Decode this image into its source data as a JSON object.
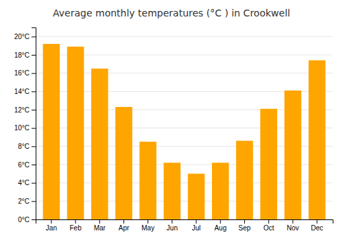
{
  "chart_data": {
    "type": "bar",
    "title": "Average monthly temperatures (°C ) in Crookwell",
    "categories": [
      "Jan",
      "Feb",
      "Mar",
      "Apr",
      "May",
      "Jun",
      "Jul",
      "Aug",
      "Sep",
      "Oct",
      "Nov",
      "Dec"
    ],
    "values": [
      19.2,
      18.9,
      16.5,
      12.3,
      8.5,
      6.2,
      5.0,
      6.2,
      8.6,
      12.1,
      14.1,
      17.4
    ],
    "color": "#FFA500",
    "ylim": [
      0,
      21
    ],
    "yticks": [
      {
        "value": 0,
        "label": "0°C"
      },
      {
        "value": 2,
        "label": "2°C"
      },
      {
        "value": 4,
        "label": "4°C"
      },
      {
        "value": 6,
        "label": "6°C"
      },
      {
        "value": 8,
        "label": "8°C"
      },
      {
        "value": 10,
        "label": "10°C"
      },
      {
        "value": 12,
        "label": "12°C"
      },
      {
        "value": 14,
        "label": "14°C"
      },
      {
        "value": 16,
        "label": "16°C"
      },
      {
        "value": 18,
        "label": "18°C"
      },
      {
        "value": 20,
        "label": "20°C"
      }
    ],
    "grid": true
  }
}
